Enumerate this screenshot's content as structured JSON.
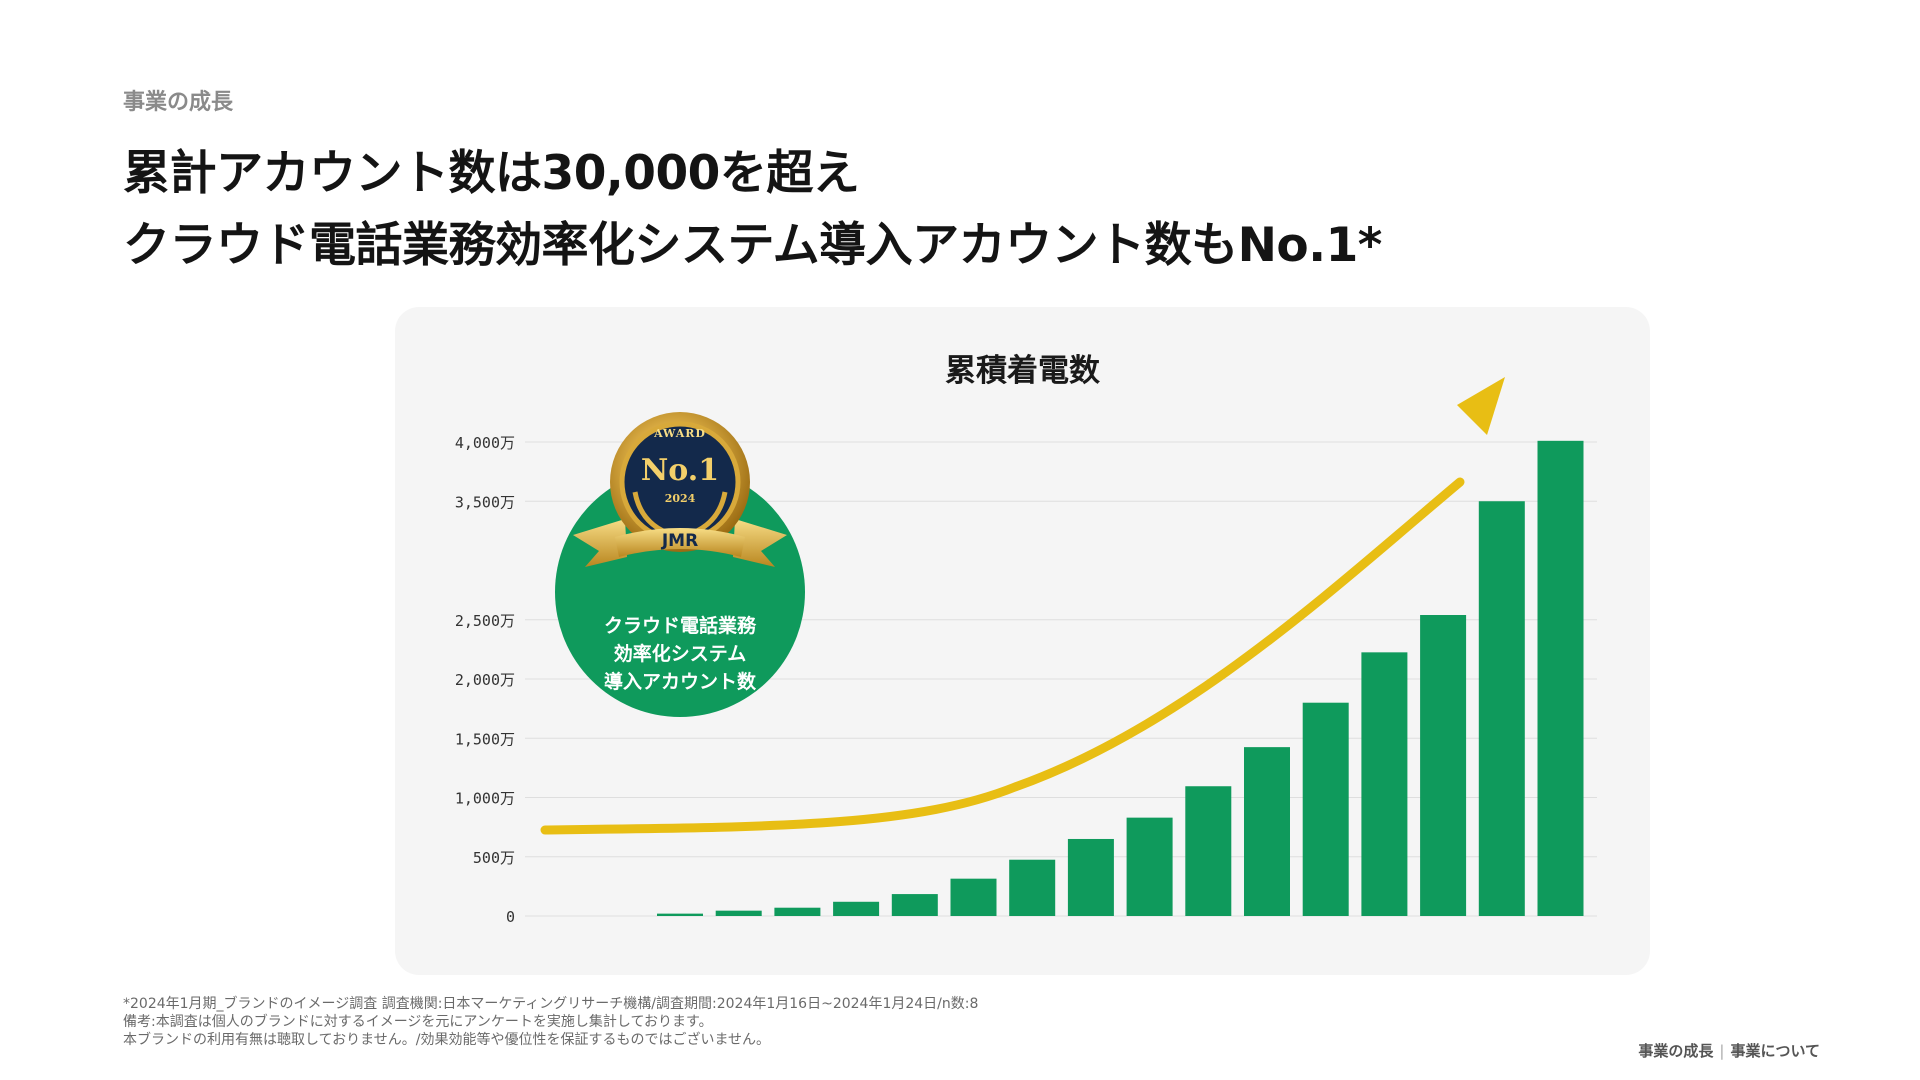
{
  "header": {
    "section": "事業の成長",
    "headline_line1": "累計アカウント数は30,000を超え",
    "headline_line2": "クラウド電話業務効率化システム導入アカウント数もNo.1*"
  },
  "badge": {
    "award_text": "AWARD",
    "rank": "No.1",
    "year": "2024",
    "org": "JMR",
    "line1": "クラウド電話業務",
    "line2": "効率化システム",
    "line3": "導入アカウント数"
  },
  "chart_data": {
    "type": "bar",
    "title": "累積着電数",
    "xlabel": "",
    "ylabel": "",
    "ylim": [
      0,
      4000
    ],
    "yticks": [
      {
        "value": 0,
        "label": "0"
      },
      {
        "value": 500,
        "label": "500万"
      },
      {
        "value": 1000,
        "label": "1,000万"
      },
      {
        "value": 1500,
        "label": "1,500万"
      },
      {
        "value": 2000,
        "label": "2,000万"
      },
      {
        "value": 2500,
        "label": "2,500万"
      },
      {
        "value": 3500,
        "label": "3,500万"
      },
      {
        "value": 4000,
        "label": "4,000万"
      }
    ],
    "values": [
      20,
      45,
      70,
      120,
      185,
      315,
      475,
      650,
      830,
      1095,
      1425,
      1800,
      2225,
      2540,
      3500,
      4010
    ],
    "grid": true,
    "colors": {
      "bar": "#0f9a5c",
      "trend_arrow": "#e8be14",
      "grid": "#dedede"
    }
  },
  "footnotes": {
    "line1": "*2024年1月期_ブランドのイメージ調査 調査機関:日本マーケティングリサーチ機構/調査期間:2024年1月16日~2024年1月24日/n数:8",
    "line2": "備考:本調査は個人のブランドに対するイメージを元にアンケートを実施し集計しております。",
    "line3": "本ブランドの利用有無は聴取しておりません。/効果効能等や優位性を保証するものではございません。"
  },
  "footer": {
    "crumb1": "事業の成長",
    "crumb2": "事業について"
  }
}
